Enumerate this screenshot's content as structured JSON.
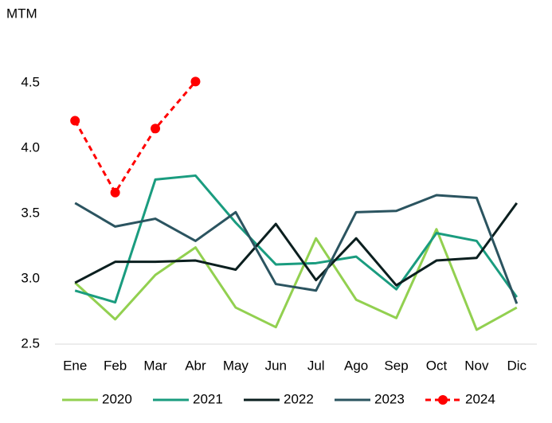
{
  "chart_data": {
    "type": "line",
    "y_axis_label": "MTM",
    "categories": [
      "Ene",
      "Feb",
      "Mar",
      "Abr",
      "May",
      "Jun",
      "Jul",
      "Ago",
      "Sep",
      "Oct",
      "Nov",
      "Dic"
    ],
    "ylim": [
      2.5,
      4.5
    ],
    "yticks": [
      2.5,
      {
        "value": 3,
        "label": "3.0"
      },
      3.5,
      {
        "value": 4,
        "label": "4.0"
      },
      4.5
    ],
    "legend": "bottom",
    "series": [
      {
        "name": "2020",
        "color": "#92d050",
        "style": "solid",
        "values": [
          2.97,
          2.69,
          3.03,
          3.24,
          2.78,
          2.63,
          3.31,
          2.84,
          2.7,
          3.38,
          2.61,
          2.78
        ]
      },
      {
        "name": "2021",
        "color": "#1a9c7f",
        "style": "solid",
        "values": [
          2.91,
          2.82,
          3.76,
          3.79,
          3.43,
          3.11,
          3.12,
          3.17,
          2.92,
          3.35,
          3.29,
          2.86
        ]
      },
      {
        "name": "2022",
        "color": "#0b1f1f",
        "style": "solid",
        "values": [
          2.97,
          3.13,
          3.13,
          3.14,
          3.07,
          3.42,
          2.99,
          3.31,
          2.95,
          3.14,
          3.16,
          3.58
        ]
      },
      {
        "name": "2023",
        "color": "#2b5460",
        "style": "solid",
        "values": [
          3.58,
          3.4,
          3.46,
          3.29,
          3.51,
          2.96,
          2.91,
          3.51,
          3.52,
          3.64,
          3.62,
          2.81
        ]
      },
      {
        "name": "2024",
        "color": "#ff0000",
        "style": "dashed",
        "marker": true,
        "values": [
          4.21,
          3.66,
          4.15,
          4.51,
          null,
          null,
          null,
          null,
          null,
          null,
          null,
          null
        ]
      }
    ]
  }
}
